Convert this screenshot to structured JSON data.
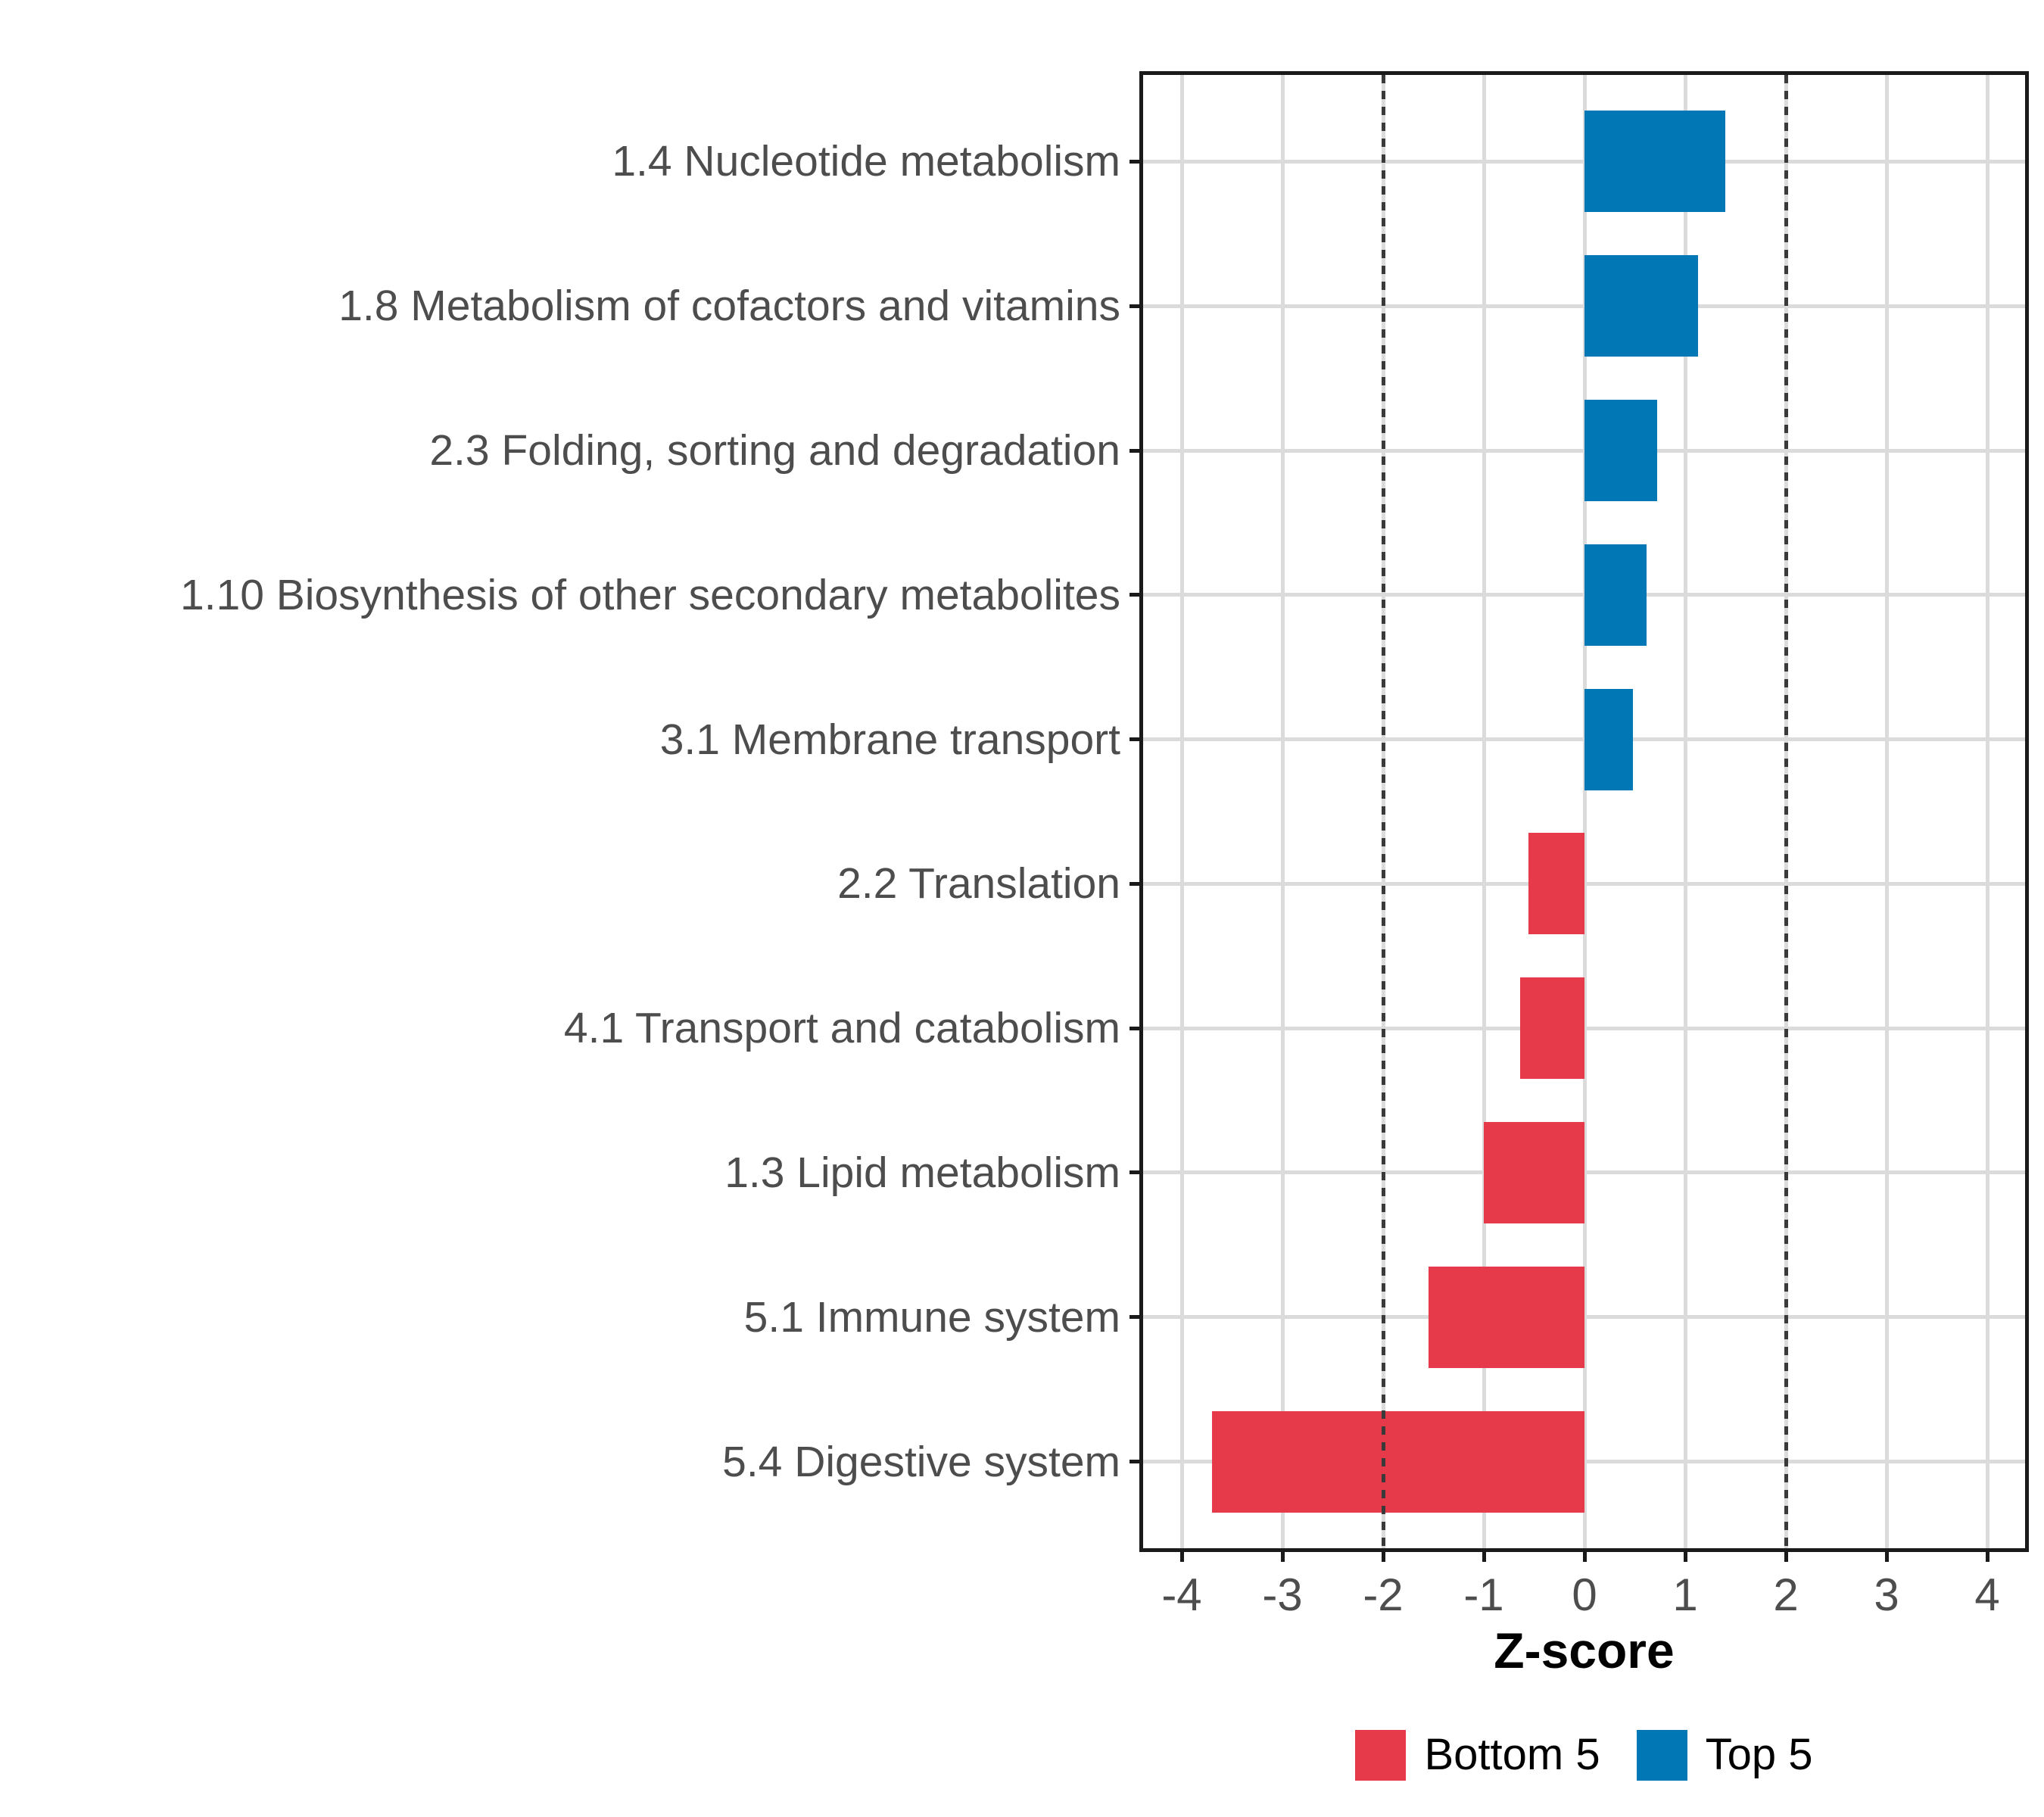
{
  "chart_data": {
    "type": "bar",
    "orientation": "horizontal",
    "title": "",
    "xlabel": "Z-score",
    "ylabel": "",
    "categories": [
      "1.4 Nucleotide metabolism",
      "1.8 Metabolism of cofactors and vitamins",
      "2.3 Folding, sorting and degradation",
      "1.10 Biosynthesis of other secondary metabolites",
      "3.1 Membrane transport",
      "2.2 Translation",
      "4.1 Transport and catabolism",
      "1.3 Lipid metabolism",
      "5.1 Immune system",
      "5.4 Digestive system"
    ],
    "values": [
      1.4,
      1.13,
      0.72,
      0.62,
      0.48,
      -0.56,
      -0.64,
      -1.0,
      -1.55,
      -3.7
    ],
    "groups": [
      "Top 5",
      "Top 5",
      "Top 5",
      "Top 5",
      "Top 5",
      "Bottom 5",
      "Bottom 5",
      "Bottom 5",
      "Bottom 5",
      "Bottom 5"
    ],
    "xlim": [
      -4.4,
      4.4
    ],
    "x_ticks": [
      -4,
      -3,
      -2,
      -1,
      0,
      1,
      2,
      3,
      4
    ],
    "reference_lines": [
      -2,
      2
    ],
    "grid": "major-only",
    "legend_position": "bottom",
    "legend": [
      {
        "label": "Bottom 5",
        "color": "#E6394A"
      },
      {
        "label": "Top 5",
        "color": "#0277B5"
      }
    ],
    "colors": {
      "bottom5": "#E6394A",
      "top5": "#0277B5",
      "gridline": "#DBDBDB",
      "reference_line": "#3A3A3A",
      "axis_text": "#4d4d4d",
      "axis_title": "#000000",
      "panel_border": "#1a1a1a"
    }
  }
}
